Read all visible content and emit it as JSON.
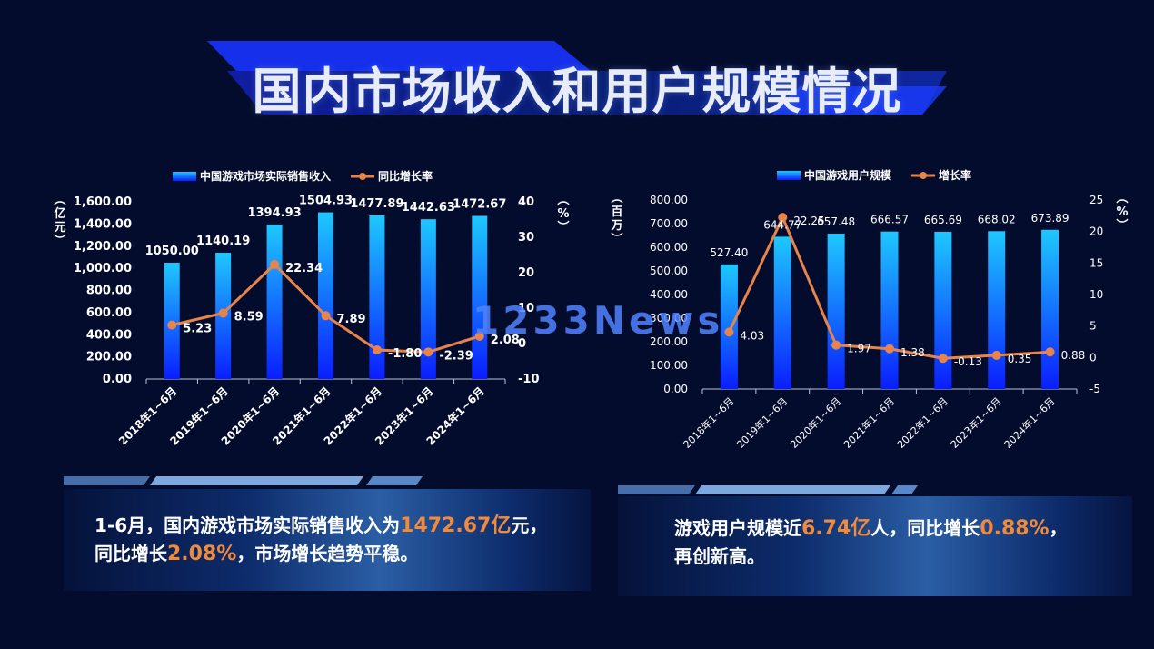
{
  "title": "国内市场收入和用户规模情况",
  "watermark": "1233News",
  "chart_data": [
    {
      "type": "bar",
      "categories": [
        "2018年1~6月",
        "2019年1~6月",
        "2020年1~6月",
        "2021年1~6月",
        "2022年1~6月",
        "2023年1~6月",
        "2024年1~6月"
      ],
      "series": [
        {
          "name": "中国游戏市场实际销售收入",
          "type": "bar",
          "axis": "left",
          "values": [
            1050.0,
            1140.19,
            1394.93,
            1504.93,
            1477.89,
            1442.63,
            1472.67
          ]
        },
        {
          "name": "同比增长率",
          "type": "line",
          "axis": "right",
          "values": [
            5.23,
            8.59,
            22.34,
            7.89,
            -1.8,
            -2.39,
            2.08
          ]
        }
      ],
      "ylabel_left": "亿元",
      "ylabel_right": "%",
      "ylim_left": [
        0,
        1600
      ],
      "ylim_right": [
        -10,
        40
      ],
      "yticks_left": [
        "1,600.00",
        "1,400.00",
        "1,200.00",
        "1,000.00",
        "800.00",
        "600.00",
        "400.00",
        "200.00",
        "0.00"
      ],
      "yticks_right": [
        "40",
        "30",
        "20",
        "10",
        "0",
        "-10"
      ],
      "bar_labels": [
        "1050.00",
        "1140.19",
        "1394.93",
        "1504.93",
        "1477.89",
        "1442.63",
        "1472.67"
      ],
      "line_labels": [
        "5.23",
        "8.59",
        "22.34",
        "7.89",
        "-1.80",
        "-2.39",
        "2.08"
      ],
      "legend": "top"
    },
    {
      "type": "bar",
      "categories": [
        "2018年1~6月",
        "2019年1~6月",
        "2020年1~6月",
        "2021年1~6月",
        "2022年1~6月",
        "2023年1~6月",
        "2024年1~6月"
      ],
      "series": [
        {
          "name": "中国游戏用户规模",
          "type": "bar",
          "axis": "left",
          "values": [
            527.4,
            644.77,
            657.48,
            666.57,
            665.69,
            668.02,
            673.89
          ]
        },
        {
          "name": "增长率",
          "type": "line",
          "axis": "right",
          "values": [
            4.03,
            22.25,
            1.97,
            1.38,
            -0.13,
            0.35,
            0.88
          ]
        }
      ],
      "ylabel_left": "百万",
      "ylabel_right": "%",
      "ylim_left": [
        0,
        800
      ],
      "ylim_right": [
        -5,
        25
      ],
      "yticks_left": [
        "800.00",
        "700.00",
        "600.00",
        "500.00",
        "400.00",
        "300.00",
        "200.00",
        "100.00",
        "0.00"
      ],
      "yticks_right": [
        "25",
        "20",
        "15",
        "10",
        "5",
        "0",
        "-5"
      ],
      "bar_labels": [
        "527.40",
        "644.77",
        "657.48",
        "666.57",
        "665.69",
        "668.02",
        "673.89"
      ],
      "line_labels": [
        "4.03",
        "22.25",
        "1.97",
        "1.38",
        "-0.13",
        "0.35",
        "0.88"
      ],
      "legend": "top"
    }
  ],
  "summary_left": {
    "line1_a": "1-6月，国内游戏市场实际销售收入为",
    "line1_hl": "1472.67亿",
    "line1_b": "元，",
    "line2_a": "同比增长",
    "line2_hl": "2.08%",
    "line2_b": "，市场增长趋势平稳。"
  },
  "summary_right": {
    "line1_a": "游戏用户规模近",
    "line1_hl": "6.74亿",
    "line1_b": "人，同比增长",
    "line1_hl2": "0.88%",
    "line1_c": "，",
    "line2_a": "再创新高。"
  },
  "colors": {
    "background": "#040c2e",
    "bar_top": "#1ec8ff",
    "bar_bottom": "#0a1eff",
    "line": "#e8834a",
    "highlight": "#f08a3c"
  }
}
